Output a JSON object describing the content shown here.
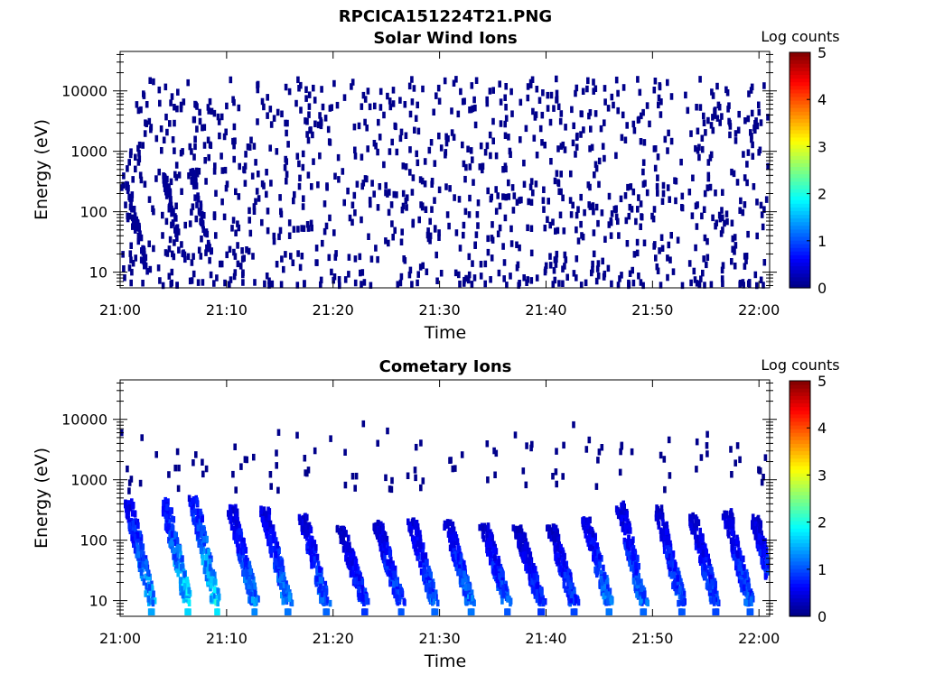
{
  "figure": {
    "title": "RPCICA151224T21.PNG"
  },
  "chart_data": [
    {
      "type": "heatmap",
      "title": "Solar Wind Ions",
      "xlabel": "Time",
      "ylabel": "Energy (eV)",
      "xlim": [
        "21:00",
        "22:01"
      ],
      "x_ticks": [
        "21:00",
        "21:10",
        "21:20",
        "21:30",
        "21:40",
        "21:50",
        "22:00"
      ],
      "ylim": [
        5.5,
        45000
      ],
      "yscale": "log",
      "y_ticks": [
        "10",
        "100",
        "1000",
        "10000"
      ],
      "colorbar": {
        "label": "Log counts",
        "range": [
          0,
          5
        ],
        "ticks": [
          "0",
          "1",
          "2",
          "3",
          "4",
          "5"
        ],
        "colormap": "jet"
      },
      "description": "Sparse single-count (log counts ~0) pixels scattered across all energies 10 eV - 15 keV; denser low-energy streaks near 21:01, 21:04, 21:07",
      "streaks": [
        {
          "time": "21:00.5",
          "emin": 10,
          "emax": 300,
          "level": 0.1
        },
        {
          "time": "21:04",
          "emin": 15,
          "emax": 400,
          "level": 0.1
        },
        {
          "time": "21:06.5",
          "emin": 20,
          "emax": 500,
          "level": 0.1
        }
      ]
    },
    {
      "type": "heatmap",
      "title": "Cometary Ions",
      "xlabel": "Time",
      "ylabel": "Energy (eV)",
      "xlim": [
        "21:00",
        "22:01"
      ],
      "x_ticks": [
        "21:00",
        "21:10",
        "21:20",
        "21:30",
        "21:40",
        "21:50",
        "22:00"
      ],
      "ylim": [
        5.5,
        45000
      ],
      "yscale": "log",
      "y_ticks": [
        "10",
        "100",
        "1000",
        "10000"
      ],
      "colorbar": {
        "label": "Log counts",
        "range": [
          0,
          5
        ],
        "ticks": [
          "0",
          "1",
          "2",
          "3",
          "4",
          "5"
        ],
        "colormap": "jet"
      },
      "description": "Periodic dispersed ion bursts from ~400 eV down to ~10 eV, peak log counts ~2 in the early bursts",
      "bursts": [
        {
          "time": "21:00.6",
          "emax": 450,
          "peak": 1.8
        },
        {
          "time": "21:04",
          "emax": 480,
          "peak": 2.1
        },
        {
          "time": "21:06.7",
          "emax": 500,
          "peak": 2.2
        },
        {
          "time": "21:10.3",
          "emax": 350,
          "peak": 1.6
        },
        {
          "time": "21:13.4",
          "emax": 330,
          "peak": 1.5
        },
        {
          "time": "21:17",
          "emax": 250,
          "peak": 1.4
        },
        {
          "time": "21:20.6",
          "emax": 160,
          "peak": 1.1
        },
        {
          "time": "21:24",
          "emax": 200,
          "peak": 1.3
        },
        {
          "time": "21:27.2",
          "emax": 220,
          "peak": 1.4
        },
        {
          "time": "21:30.6",
          "emax": 200,
          "peak": 1.5
        },
        {
          "time": "21:34",
          "emax": 180,
          "peak": 1.3
        },
        {
          "time": "21:37.2",
          "emax": 160,
          "peak": 1.1
        },
        {
          "time": "21:40.3",
          "emax": 170,
          "peak": 1.2
        },
        {
          "time": "21:43.6",
          "emax": 220,
          "peak": 1.5
        },
        {
          "time": "21:46.8",
          "emax": 400,
          "peak": 1.4
        },
        {
          "time": "21:50.4",
          "emax": 350,
          "peak": 1.3
        },
        {
          "time": "21:53.6",
          "emax": 260,
          "peak": 1.2
        },
        {
          "time": "21:56.8",
          "emax": 300,
          "peak": 1.3
        },
        {
          "time": "21:59.4",
          "emax": 250,
          "peak": 1.4
        }
      ]
    }
  ]
}
